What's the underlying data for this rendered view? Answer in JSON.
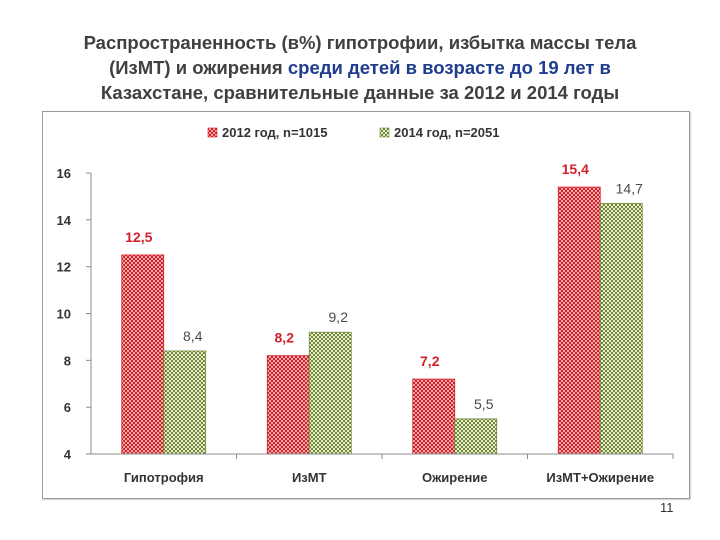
{
  "slide": {
    "title_line1": "Распространенность (в%) гипотрофии, избытка массы тела",
    "title_line2_a": "(ИзМТ) и ожирения ",
    "title_line2_b": "среди детей в возрасте до 19 лет в",
    "title_line3": "Казахстане, сравнительные данные за 2012 и 2014 годы",
    "page_number": "11"
  },
  "colors": {
    "series_2012": "#d2212a",
    "series_2012_light": "#f2aaa8",
    "series_2014": "#6f8a37",
    "series_2014_light": "#e9eccf",
    "label_2012": "#d2212a",
    "label_2014": "#4a4a4a"
  },
  "chart_data": {
    "type": "bar",
    "categories": [
      "Гипотрофия",
      "ИзМТ",
      "Ожирение",
      "ИзМТ+Ожирение"
    ],
    "series": [
      {
        "name": "2012 год, n=1015",
        "values": [
          12.5,
          8.2,
          7.2,
          15.4
        ],
        "labels": [
          "12,5",
          "8,2",
          "7,2",
          "15,4"
        ]
      },
      {
        "name": "2014 год, n=2051",
        "values": [
          8.4,
          9.2,
          5.5,
          14.7
        ],
        "labels": [
          "8,4",
          "9,2",
          "5,5",
          "14,7"
        ]
      }
    ],
    "ylim": [
      4,
      16
    ],
    "yticks": [
      "4",
      "6",
      "8",
      "10",
      "12",
      "14",
      "16"
    ],
    "legend_position": "top"
  }
}
